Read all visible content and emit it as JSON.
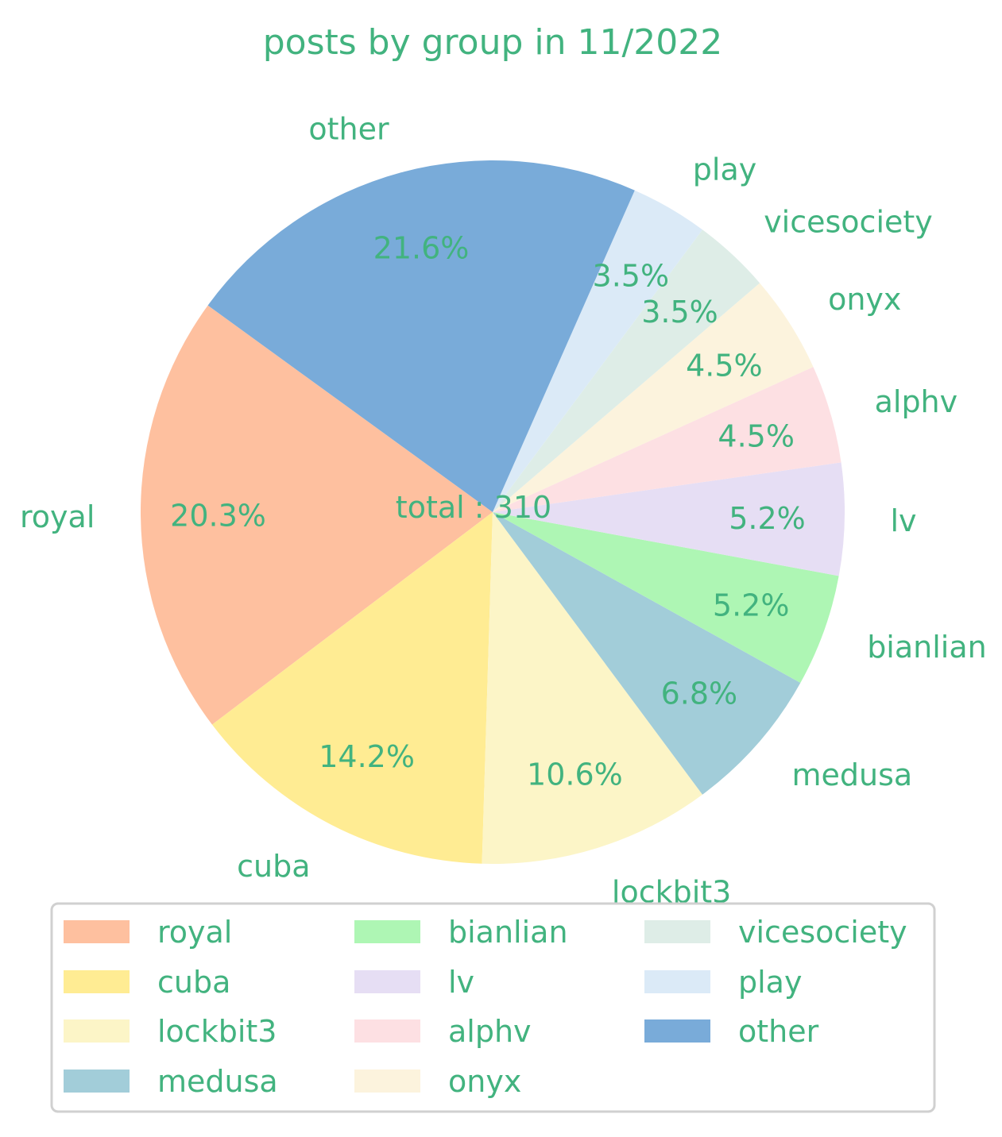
{
  "chart_data": {
    "type": "pie",
    "title": "posts by group in 11/2022",
    "center_label": "total : 310",
    "text_color": "#42b37f",
    "slices": [
      {
        "label": "royal",
        "value": 63,
        "pct": "20.3%",
        "color": "#fec09f"
      },
      {
        "label": "cuba",
        "value": 44,
        "pct": "14.2%",
        "color": "#ffec93"
      },
      {
        "label": "lockbit3",
        "value": 33,
        "pct": "10.6%",
        "color": "#fcf5c7"
      },
      {
        "label": "medusa",
        "value": 21,
        "pct": "6.8%",
        "color": "#a2cdd9"
      },
      {
        "label": "bianlian",
        "value": 16,
        "pct": "5.2%",
        "color": "#aef6b4"
      },
      {
        "label": "lv",
        "value": 16,
        "pct": "5.2%",
        "color": "#e6def4"
      },
      {
        "label": "alphv",
        "value": 14,
        "pct": "4.5%",
        "color": "#fde0e3"
      },
      {
        "label": "onyx",
        "value": 14,
        "pct": "4.5%",
        "color": "#fcf3dd"
      },
      {
        "label": "vicesociety",
        "value": 11,
        "pct": "3.5%",
        "color": "#deede7"
      },
      {
        "label": "play",
        "value": 11,
        "pct": "3.5%",
        "color": "#dbeaf7"
      },
      {
        "label": "other",
        "value": 67,
        "pct": "21.6%",
        "color": "#79abd9"
      }
    ],
    "start_angle_deg": 144,
    "direction": "counterclockwise",
    "legend": {
      "position": "bottom",
      "columns": 3
    }
  }
}
